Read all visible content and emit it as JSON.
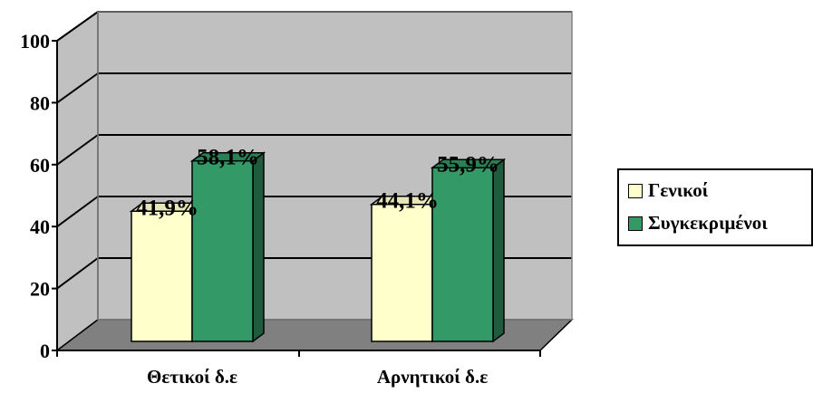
{
  "chart_data": {
    "type": "bar",
    "categories": [
      "Θετικοί δ.ε",
      "Αρνητικοί δ.ε"
    ],
    "series": [
      {
        "name": "Γενικοί",
        "values": [
          41.9,
          44.1
        ],
        "labels": [
          "41,9%",
          "44,1%"
        ],
        "color": "#FFFFCC"
      },
      {
        "name": "Συγκεκριμένοι",
        "values": [
          58.1,
          55.9
        ],
        "labels": [
          "58,1%",
          "55,9%"
        ],
        "color": "#339966"
      }
    ],
    "ylim": [
      0,
      100
    ],
    "yticks": [
      "0",
      "20",
      "40",
      "60",
      "80",
      "100"
    ],
    "grid": true,
    "legend_position": "right",
    "wall_color": "#C0C0C0",
    "floor_color": "#808080"
  }
}
